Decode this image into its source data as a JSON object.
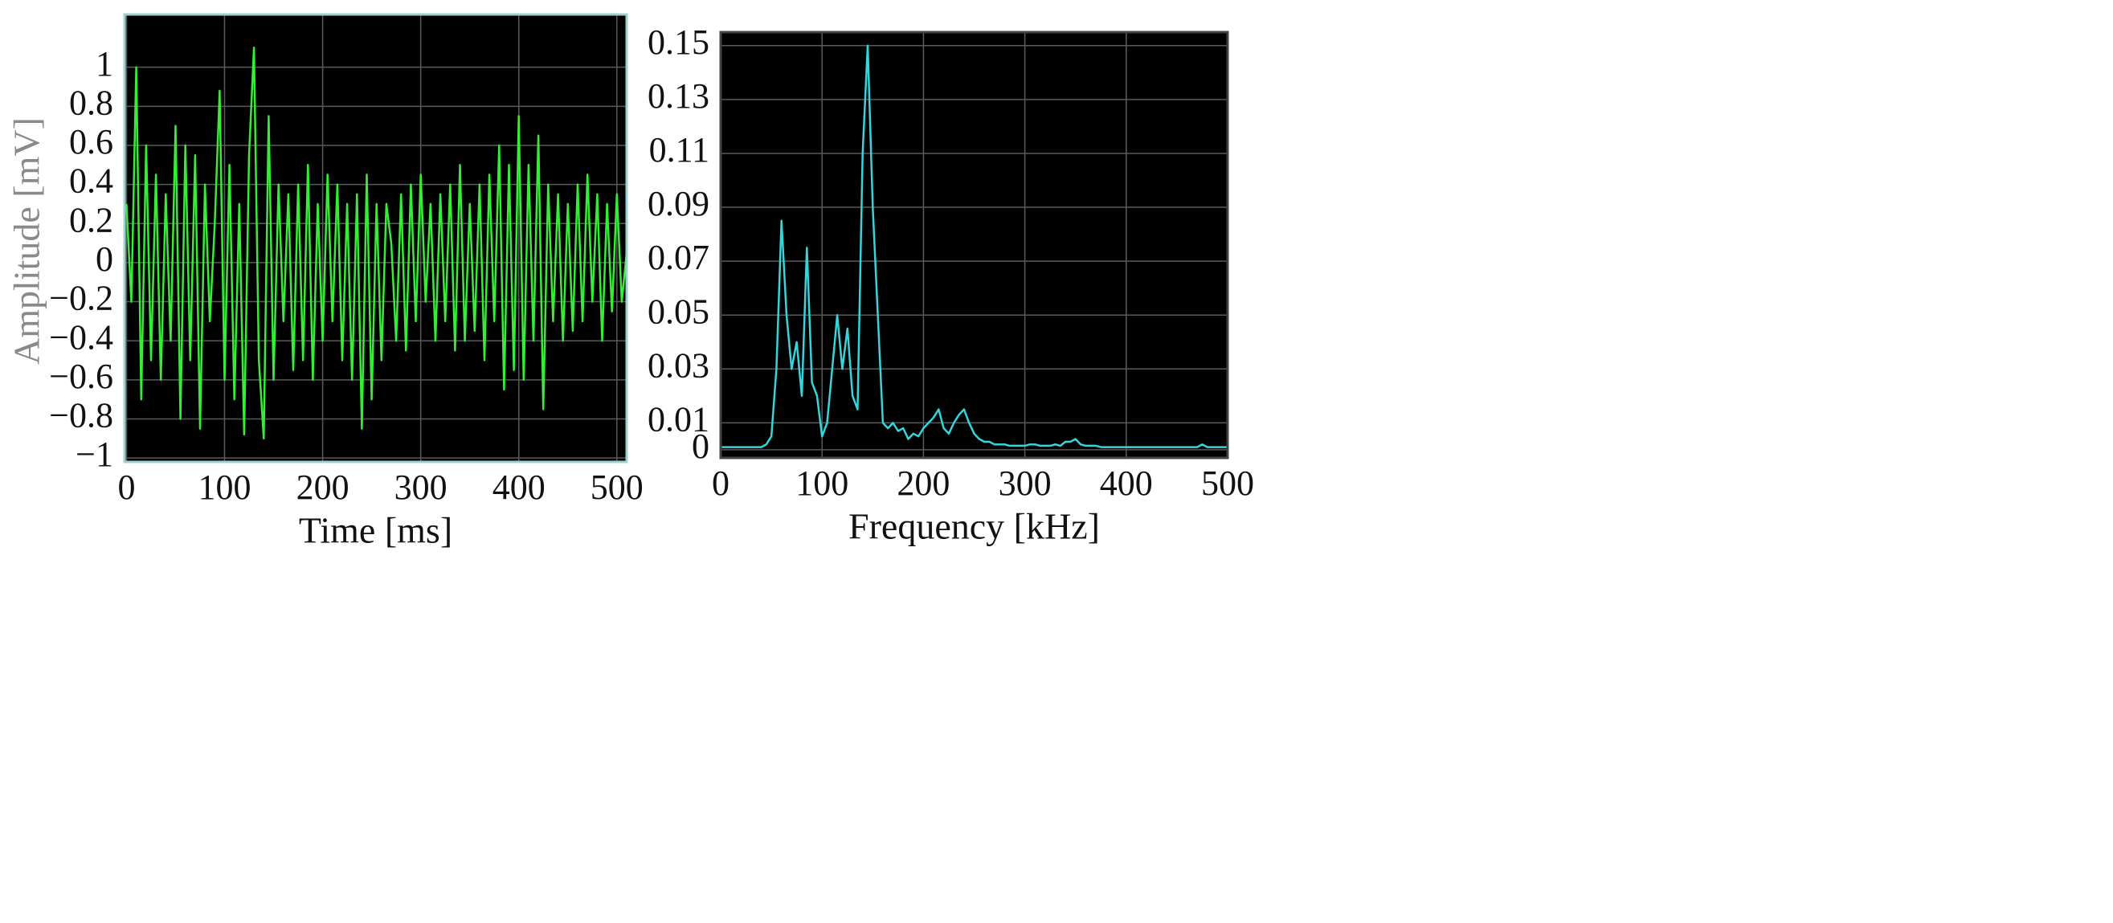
{
  "chart_data": [
    {
      "type": "line",
      "color": "#33ee33",
      "xlabel": "Time [ms]",
      "ylabel": "Amplitude [mV]",
      "x": [
        0,
        5,
        10,
        15,
        20,
        25,
        30,
        35,
        40,
        45,
        50,
        55,
        60,
        65,
        70,
        75,
        80,
        85,
        90,
        95,
        100,
        105,
        110,
        115,
        120,
        125,
        130,
        135,
        140,
        145,
        150,
        155,
        160,
        165,
        170,
        175,
        180,
        185,
        190,
        195,
        200,
        205,
        210,
        215,
        220,
        225,
        230,
        235,
        240,
        245,
        250,
        255,
        260,
        265,
        270,
        275,
        280,
        285,
        290,
        295,
        300,
        305,
        310,
        315,
        320,
        325,
        330,
        335,
        340,
        345,
        350,
        355,
        360,
        365,
        370,
        375,
        380,
        385,
        390,
        395,
        400,
        405,
        410,
        415,
        420,
        425,
        430,
        435,
        440,
        445,
        450,
        455,
        460,
        465,
        470,
        475,
        480,
        485,
        490,
        495,
        500,
        505,
        510
      ],
      "values": [
        0.3,
        -0.2,
        1.0,
        -0.7,
        0.6,
        -0.5,
        0.45,
        -0.6,
        0.35,
        -0.4,
        0.7,
        -0.8,
        0.6,
        -0.5,
        0.55,
        -0.85,
        0.4,
        -0.3,
        0.2,
        0.88,
        -0.6,
        0.5,
        -0.7,
        0.3,
        -0.88,
        0.55,
        1.1,
        -0.5,
        -0.9,
        0.75,
        -0.6,
        0.4,
        -0.3,
        0.35,
        -0.55,
        0.4,
        -0.5,
        0.5,
        -0.6,
        0.3,
        -0.4,
        0.45,
        -0.3,
        0.4,
        -0.5,
        0.3,
        -0.6,
        0.35,
        -0.85,
        0.45,
        -0.7,
        0.3,
        -0.5,
        0.3,
        0.1,
        -0.4,
        0.35,
        -0.45,
        0.4,
        -0.3,
        0.45,
        -0.2,
        0.3,
        -0.4,
        0.35,
        -0.3,
        0.4,
        -0.45,
        0.5,
        -0.4,
        0.3,
        -0.35,
        0.4,
        -0.5,
        0.45,
        -0.3,
        0.6,
        -0.65,
        0.5,
        -0.55,
        0.75,
        -0.6,
        0.5,
        -0.4,
        0.65,
        -0.75,
        0.4,
        -0.3,
        0.35,
        -0.4,
        0.3,
        -0.35,
        0.4,
        -0.3,
        0.45,
        -0.2,
        0.35,
        -0.4,
        0.3,
        -0.25,
        0.35,
        -0.2,
        0.05
      ],
      "xlim": [
        -2,
        510
      ],
      "xticks": [
        0,
        100,
        200,
        300,
        400,
        500
      ],
      "ylim": [
        -1.02,
        1.27
      ],
      "yticks": [
        {
          "value": -1,
          "label": "−1"
        },
        {
          "value": -0.8,
          "label": "−0.8"
        },
        {
          "value": -0.6,
          "label": "−0.6"
        },
        {
          "value": -0.4,
          "label": "−0.4"
        },
        {
          "value": -0.2,
          "label": "−0.2"
        },
        0,
        0.2,
        0.4,
        0.6,
        0.8,
        1
      ],
      "grid": true
    },
    {
      "type": "line",
      "color": "#33d6dd",
      "xlabel": "Frequency [kHz]",
      "x": [
        0,
        5,
        10,
        15,
        20,
        25,
        30,
        35,
        40,
        45,
        50,
        55,
        60,
        65,
        70,
        75,
        80,
        85,
        90,
        95,
        100,
        105,
        110,
        115,
        120,
        125,
        130,
        135,
        140,
        145,
        150,
        155,
        160,
        165,
        170,
        175,
        180,
        185,
        190,
        195,
        200,
        205,
        210,
        215,
        220,
        225,
        230,
        235,
        240,
        245,
        250,
        255,
        260,
        265,
        270,
        275,
        280,
        285,
        290,
        295,
        300,
        305,
        310,
        315,
        320,
        325,
        330,
        335,
        340,
        345,
        350,
        355,
        360,
        365,
        370,
        375,
        380,
        385,
        390,
        395,
        400,
        405,
        410,
        415,
        420,
        425,
        430,
        435,
        440,
        445,
        450,
        455,
        460,
        465,
        470,
        475,
        480,
        485,
        490,
        495,
        500
      ],
      "values": [
        0.001,
        0.001,
        0.001,
        0.001,
        0.001,
        0.001,
        0.001,
        0.001,
        0.001,
        0.002,
        0.005,
        0.03,
        0.085,
        0.05,
        0.03,
        0.04,
        0.02,
        0.075,
        0.025,
        0.02,
        0.005,
        0.01,
        0.03,
        0.05,
        0.03,
        0.045,
        0.02,
        0.015,
        0.11,
        0.15,
        0.09,
        0.05,
        0.01,
        0.008,
        0.01,
        0.007,
        0.008,
        0.004,
        0.006,
        0.005,
        0.008,
        0.01,
        0.012,
        0.015,
        0.008,
        0.006,
        0.01,
        0.013,
        0.015,
        0.01,
        0.006,
        0.004,
        0.003,
        0.003,
        0.002,
        0.002,
        0.002,
        0.0015,
        0.0015,
        0.0015,
        0.0015,
        0.002,
        0.002,
        0.0015,
        0.0015,
        0.0015,
        0.002,
        0.0015,
        0.003,
        0.003,
        0.004,
        0.002,
        0.0015,
        0.0015,
        0.0015,
        0.001,
        0.001,
        0.001,
        0.001,
        0.001,
        0.001,
        0.001,
        0.001,
        0.001,
        0.001,
        0.001,
        0.001,
        0.001,
        0.001,
        0.001,
        0.001,
        0.001,
        0.001,
        0.001,
        0.001,
        0.002,
        0.001,
        0.001,
        0.001,
        0.001,
        0.001
      ],
      "xlim": [
        0,
        500
      ],
      "xticks": [
        0,
        100,
        200,
        300,
        400,
        500
      ],
      "ylim": [
        -0.003,
        0.155
      ],
      "yticks": [
        0,
        0.01,
        0.03,
        0.05,
        0.07,
        0.09,
        0.11,
        0.13,
        0.15
      ],
      "grid": true
    }
  ]
}
